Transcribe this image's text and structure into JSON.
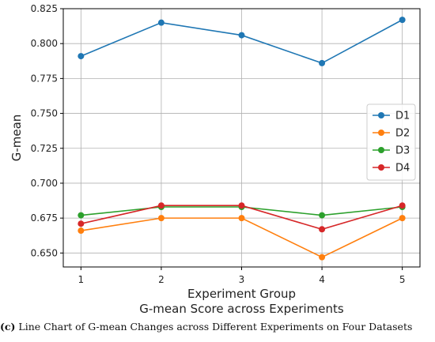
{
  "chart_data": {
    "type": "line",
    "title": "",
    "xlabel": "Experiment Group",
    "subtitle": "G-mean Score across Experiments",
    "ylabel": "G-mean",
    "x": [
      1,
      2,
      3,
      4,
      5
    ],
    "xtick_labels": [
      "1",
      "2",
      "3",
      "4",
      "5"
    ],
    "ylim": [
      0.64,
      0.825
    ],
    "yticks": [
      0.65,
      0.675,
      0.7,
      0.725,
      0.75,
      0.775,
      0.8,
      0.825
    ],
    "ytick_labels": [
      "0.650",
      "0.675",
      "0.700",
      "0.725",
      "0.750",
      "0.775",
      "0.800",
      "0.825"
    ],
    "grid": true,
    "legend_position": "center-right",
    "series": [
      {
        "name": "D1",
        "color": "#1f77b4",
        "values": [
          0.791,
          0.815,
          0.806,
          0.786,
          0.817
        ]
      },
      {
        "name": "D2",
        "color": "#ff7f0e",
        "values": [
          0.666,
          0.675,
          0.675,
          0.647,
          0.675
        ]
      },
      {
        "name": "D3",
        "color": "#2ca02c",
        "values": [
          0.677,
          0.683,
          0.683,
          0.677,
          0.683
        ]
      },
      {
        "name": "D4",
        "color": "#d62728",
        "values": [
          0.671,
          0.684,
          0.684,
          0.667,
          0.684
        ]
      }
    ]
  },
  "caption": {
    "label": "(c)",
    "text": " Line Chart of G-mean Changes across Different Experiments on Four Datasets"
  }
}
